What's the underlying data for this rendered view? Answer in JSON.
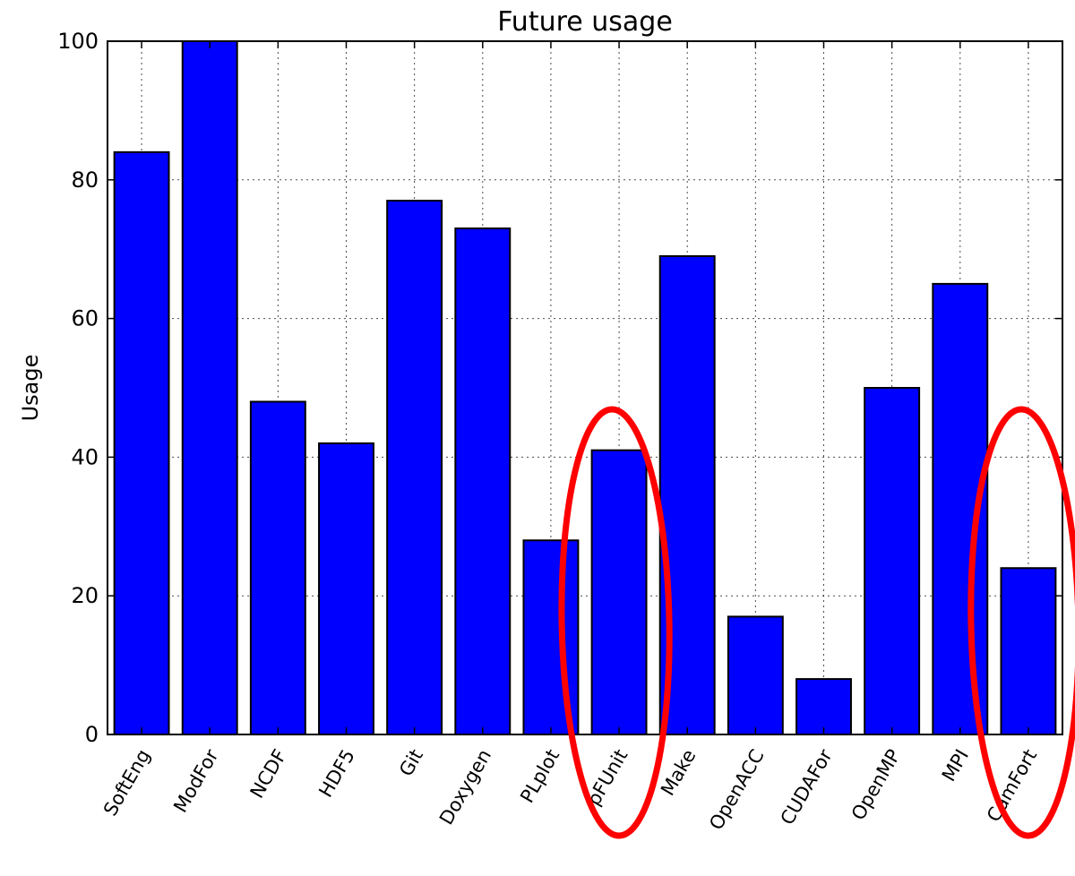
{
  "chart_data": {
    "type": "bar",
    "title": "Future usage",
    "xlabel": "",
    "ylabel": "Usage",
    "ylim": [
      0,
      100
    ],
    "yticks": [
      0,
      20,
      40,
      60,
      80,
      100
    ],
    "grid": true,
    "categories": [
      "SoftEng",
      "ModFor",
      "NCDF",
      "HDF5",
      "Git",
      "Doxygen",
      "PLplot",
      "pFUnit",
      "Make",
      "OpenACC",
      "CUDAFor",
      "OpenMP",
      "MPI",
      "CamFort"
    ],
    "values": [
      84,
      100,
      48,
      42,
      77,
      73,
      28,
      41,
      69,
      17,
      8,
      50,
      65,
      24
    ],
    "bar_color": "#0000ff",
    "highlighted_categories": [
      "pFUnit",
      "CamFort"
    ],
    "highlight_color": "#ff0000"
  }
}
